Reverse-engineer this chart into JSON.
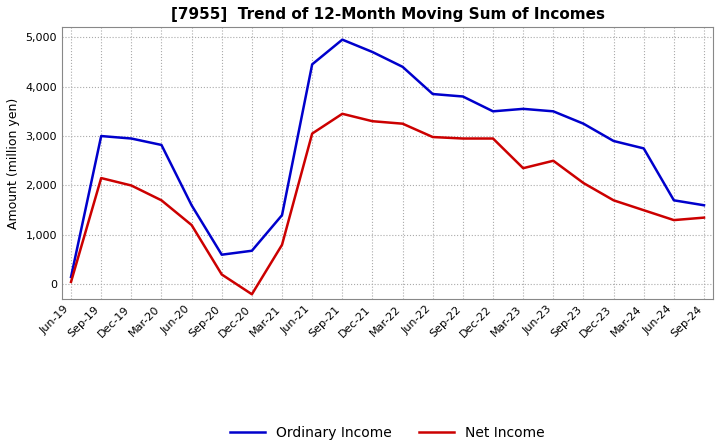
{
  "title": "[7955]  Trend of 12-Month Moving Sum of Incomes",
  "ylabel": "Amount (million yen)",
  "ylim": [
    -300,
    5200
  ],
  "yticks": [
    0,
    1000,
    2000,
    3000,
    4000,
    5000
  ],
  "x_labels": [
    "Jun-19",
    "Sep-19",
    "Dec-19",
    "Mar-20",
    "Jun-20",
    "Sep-20",
    "Dec-20",
    "Mar-21",
    "Jun-21",
    "Sep-21",
    "Dec-21",
    "Mar-22",
    "Jun-22",
    "Sep-22",
    "Dec-22",
    "Mar-23",
    "Jun-23",
    "Sep-23",
    "Dec-23",
    "Mar-24",
    "Jun-24",
    "Sep-24"
  ],
  "ordinary_income": [
    150,
    3000,
    2950,
    2820,
    1600,
    600,
    680,
    1400,
    4450,
    4950,
    4700,
    4400,
    3850,
    3800,
    3500,
    3550,
    3500,
    3250,
    2900,
    2750,
    1700,
    1600
  ],
  "net_income": [
    50,
    2150,
    2000,
    1700,
    1200,
    200,
    -200,
    800,
    3050,
    3450,
    3300,
    3250,
    2980,
    2950,
    2950,
    2350,
    2500,
    2050,
    1700,
    1500,
    1300,
    1350
  ],
  "ordinary_color": "#0000cc",
  "net_color": "#cc0000",
  "line_width": 1.8,
  "background_color": "#ffffff",
  "grid_color": "#aaaaaa",
  "title_fontsize": 11,
  "label_fontsize": 9,
  "tick_fontsize": 8
}
